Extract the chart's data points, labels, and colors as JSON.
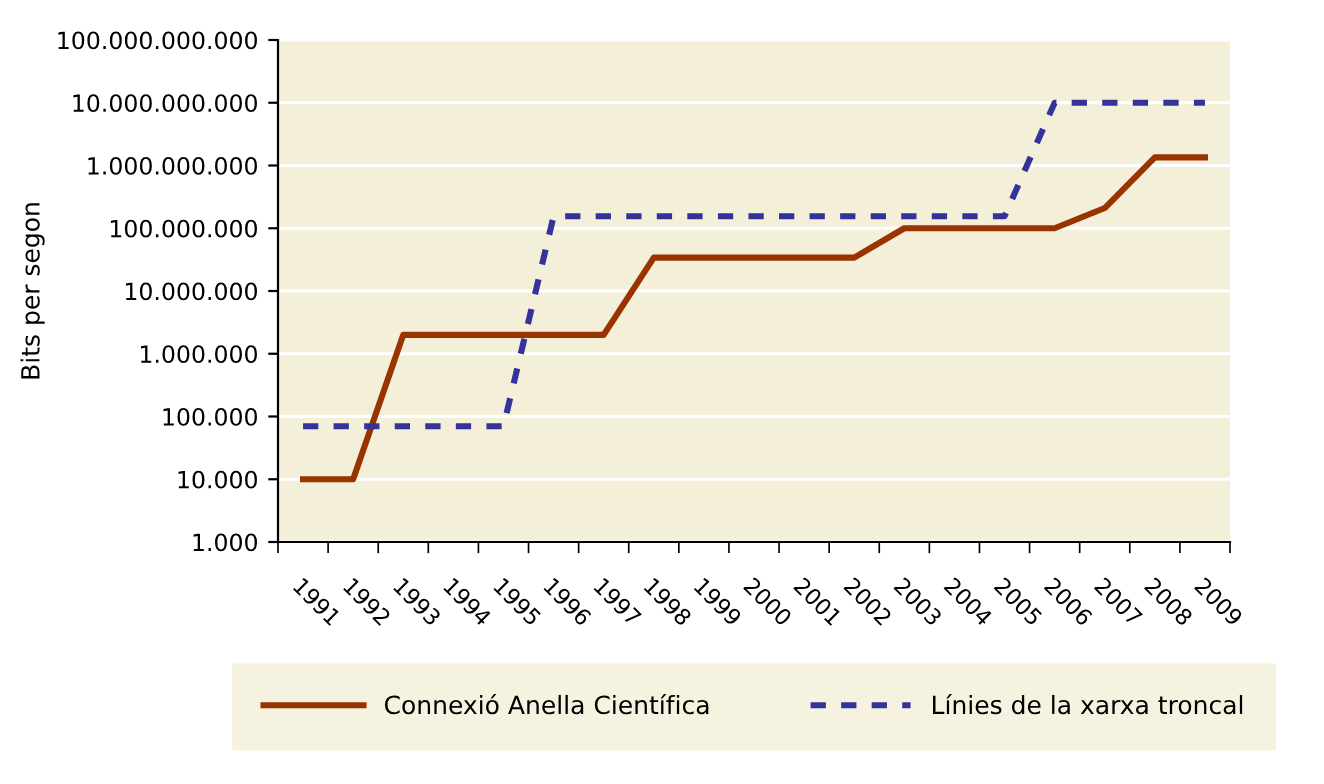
{
  "chart_data": {
    "type": "line",
    "ylabel": "Bits per segon",
    "log": true,
    "categories": [
      "1991",
      "1992",
      "1993",
      "1994",
      "1995",
      "1996",
      "1997",
      "1998",
      "1999",
      "2000",
      "2001",
      "2002",
      "2003",
      "2004",
      "2005",
      "2006",
      "2007",
      "2008",
      "2009"
    ],
    "ylim": [
      1000,
      100000000000
    ],
    "yticks": [
      {
        "value": 1000,
        "label": "1.000"
      },
      {
        "value": 10000,
        "label": "10.000"
      },
      {
        "value": 100000,
        "label": "100.000"
      },
      {
        "value": 1000000,
        "label": "1.000.000"
      },
      {
        "value": 10000000,
        "label": "10.000.000"
      },
      {
        "value": 100000000,
        "label": "100.000.000"
      },
      {
        "value": 1000000000,
        "label": "1.000.000.000"
      },
      {
        "value": 10000000000,
        "label": "10.000.000.000"
      },
      {
        "value": 100000000000,
        "label": "100.000.000.000"
      }
    ],
    "grid": "y",
    "legend": "bottom",
    "marker": "none",
    "series": [
      {
        "name": "Connexió Anella Científica",
        "color": "#993300",
        "line_style": "solid",
        "values": [
          10000,
          10000,
          2000000,
          2000000,
          2000000,
          2000000,
          2000000,
          34000000,
          34000000,
          34000000,
          34000000,
          34000000,
          100000000,
          100000000,
          100000000,
          100000000,
          210000000,
          1350000000,
          1350000000
        ]
      },
      {
        "name": "Línies de la xarxa troncal",
        "color": "#333399",
        "line_style": "dashed",
        "values": [
          70000,
          70000,
          70000,
          70000,
          70000,
          155000000,
          155000000,
          155000000,
          155000000,
          155000000,
          155000000,
          155000000,
          155000000,
          155000000,
          155000000,
          10000000000,
          10000000000,
          10000000000,
          10000000000
        ]
      }
    ]
  }
}
